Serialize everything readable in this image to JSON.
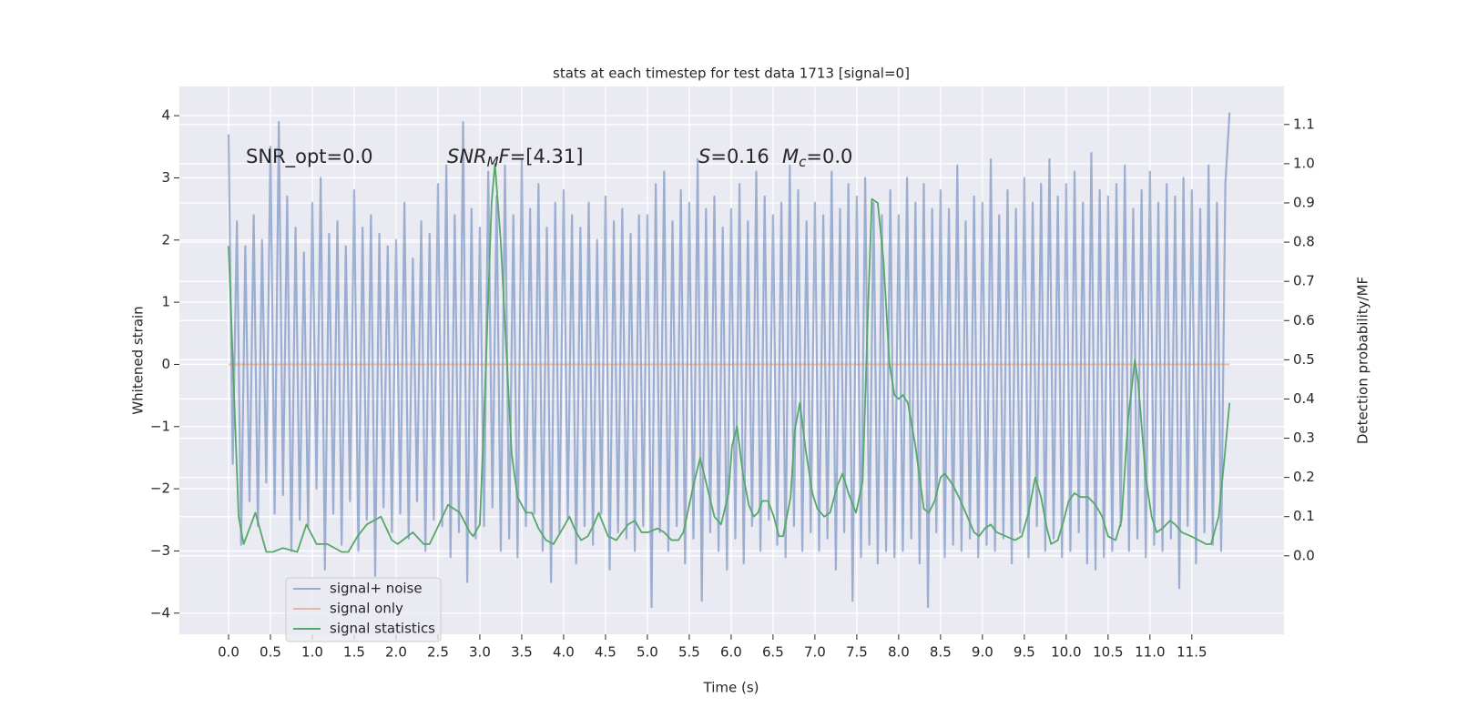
{
  "chart_data": {
    "type": "line",
    "title": "stats at each timestep for test data 1713 [signal=0]",
    "xlabel": "Time (s)",
    "ylabel": "Whitened strain",
    "y2label": "Detection probability/MF",
    "xlim": [
      -0.587,
      12.6
    ],
    "ylim": [
      -4.34,
      4.47
    ],
    "y2lim": [
      -0.2,
      1.197
    ],
    "xticks": [
      {
        "value": 0,
        "label": "0.0"
      },
      0.5,
      {
        "value": 1,
        "label": "1.0"
      },
      1.5,
      {
        "value": 2,
        "label": "2.0"
      },
      2.5,
      {
        "value": 3,
        "label": "3.0"
      },
      3.5,
      {
        "value": 4,
        "label": "4.0"
      },
      4.5,
      {
        "value": 5,
        "label": "5.0"
      },
      5.5,
      {
        "value": 6,
        "label": "6.0"
      },
      6.5,
      {
        "value": 7,
        "label": "7.0"
      },
      7.5,
      {
        "value": 8,
        "label": "8.0"
      },
      8.5,
      {
        "value": 9,
        "label": "9.0"
      },
      9.5,
      {
        "value": 10,
        "label": "10.0"
      },
      10.5,
      {
        "value": 11,
        "label": "11.0"
      },
      11.5
    ],
    "yticks": [
      {
        "value": -4,
        "label": "−4"
      },
      {
        "value": -3,
        "label": "−3"
      },
      {
        "value": -2,
        "label": "−2"
      },
      {
        "value": -1,
        "label": "−1"
      },
      0,
      1,
      2,
      3,
      4
    ],
    "y2ticks": [
      {
        "value": 0,
        "label": "0.0"
      },
      0.1,
      0.2,
      0.3,
      0.4,
      0.5,
      0.6,
      0.7,
      0.8,
      0.9,
      {
        "value": 1,
        "label": "1.0"
      },
      1.1
    ],
    "grid": true,
    "legend": "lower left",
    "annotations": [
      [
        {
          "text": "SNR_opt=0.0"
        }
      ],
      [
        {
          "text": "SNR",
          "italic": true
        },
        {
          "text": "M",
          "italic": true,
          "sub": true
        },
        {
          "text": "F",
          "italic": true
        },
        {
          "text": "=[4.31]"
        }
      ],
      [
        {
          "text": "S",
          "italic": true
        },
        {
          "text": "=0.16"
        }
      ],
      [
        {
          "text": "M",
          "italic": true
        },
        {
          "text": "c",
          "italic": true,
          "sub": true
        },
        {
          "text": "=0.0"
        }
      ]
    ],
    "series": [
      {
        "name": "signal+ noise",
        "color": "#4c72b0",
        "opacity": 0.5,
        "x": [
          0,
          0.05,
          0.1,
          0.15,
          0.2,
          0.25,
          0.3,
          0.35,
          0.4,
          0.45,
          0.5,
          0.55,
          0.6,
          0.65,
          0.7,
          0.75,
          0.8,
          0.85,
          0.9,
          0.95,
          1,
          1.05,
          1.1,
          1.15,
          1.2,
          1.25,
          1.3,
          1.35,
          1.4,
          1.45,
          1.5,
          1.55,
          1.6,
          1.65,
          1.7,
          1.75,
          1.8,
          1.85,
          1.9,
          1.95,
          2,
          2.05,
          2.1,
          2.15,
          2.2,
          2.25,
          2.3,
          2.35,
          2.4,
          2.45,
          2.5,
          2.55,
          2.6,
          2.65,
          2.7,
          2.75,
          2.8,
          2.85,
          2.9,
          2.95,
          3,
          3.05,
          3.1,
          3.15,
          3.2,
          3.25,
          3.3,
          3.35,
          3.4,
          3.45,
          3.5,
          3.55,
          3.6,
          3.65,
          3.7,
          3.75,
          3.8,
          3.85,
          3.9,
          3.95,
          4,
          4.05,
          4.1,
          4.15,
          4.2,
          4.25,
          4.3,
          4.35,
          4.4,
          4.45,
          4.5,
          4.55,
          4.6,
          4.65,
          4.7,
          4.75,
          4.8,
          4.85,
          4.9,
          4.95,
          5,
          5.05,
          5.1,
          5.15,
          5.2,
          5.25,
          5.3,
          5.35,
          5.4,
          5.45,
          5.5,
          5.55,
          5.6,
          5.65,
          5.7,
          5.75,
          5.8,
          5.85,
          5.9,
          5.95,
          6,
          6.05,
          6.1,
          6.15,
          6.2,
          6.25,
          6.3,
          6.35,
          6.4,
          6.45,
          6.5,
          6.55,
          6.6,
          6.65,
          6.7,
          6.75,
          6.8,
          6.85,
          6.9,
          6.95,
          7,
          7.05,
          7.1,
          7.15,
          7.2,
          7.25,
          7.3,
          7.35,
          7.4,
          7.45,
          7.5,
          7.55,
          7.6,
          7.65,
          7.7,
          7.75,
          7.8,
          7.85,
          7.9,
          7.95,
          8,
          8.05,
          8.1,
          8.15,
          8.2,
          8.25,
          8.3,
          8.35,
          8.4,
          8.45,
          8.5,
          8.55,
          8.6,
          8.65,
          8.7,
          8.75,
          8.8,
          8.85,
          8.9,
          8.95,
          9,
          9.05,
          9.1,
          9.15,
          9.2,
          9.25,
          9.3,
          9.35,
          9.4,
          9.45,
          9.5,
          9.55,
          9.6,
          9.65,
          9.7,
          9.75,
          9.8,
          9.85,
          9.9,
          9.95,
          10,
          10.05,
          10.1,
          10.15,
          10.2,
          10.25,
          10.3,
          10.35,
          10.4,
          10.45,
          10.5,
          10.55,
          10.6,
          10.65,
          10.7,
          10.75,
          10.8,
          10.85,
          10.9,
          10.95,
          11,
          11.05,
          11.1,
          11.15,
          11.2,
          11.25,
          11.3,
          11.35,
          11.4,
          11.45,
          11.5,
          11.55,
          11.6,
          11.65,
          11.7,
          11.75,
          11.8,
          11.85,
          11.9,
          11.95
        ],
        "values": [
          3.7,
          -1.6,
          2.3,
          -2.9,
          1.9,
          -2.2,
          2.4,
          -2.6,
          2.0,
          -1.9,
          3.5,
          -2.4,
          3.9,
          -2.1,
          2.7,
          -3.0,
          2.2,
          -2.5,
          1.8,
          -2.6,
          2.6,
          -2.0,
          3.0,
          -3.3,
          2.1,
          -2.4,
          2.3,
          -2.9,
          1.9,
          -2.2,
          2.8,
          -3.0,
          2.2,
          -2.5,
          2.4,
          -3.4,
          2.1,
          -2.3,
          1.9,
          -2.7,
          2.0,
          -2.4,
          2.6,
          -2.8,
          1.7,
          -2.2,
          2.3,
          -3.0,
          2.1,
          -2.5,
          2.9,
          -2.6,
          3.2,
          -3.1,
          2.4,
          -2.7,
          3.9,
          -3.5,
          2.5,
          -2.8,
          2.2,
          -2.6,
          3.1,
          -2.3,
          2.7,
          -3.0,
          3.2,
          -2.8,
          2.4,
          -3.1,
          3.3,
          -2.6,
          2.5,
          -2.4,
          2.9,
          -3.0,
          2.2,
          -3.5,
          2.6,
          -2.7,
          2.8,
          -2.5,
          2.4,
          -3.2,
          2.2,
          -2.6,
          2.6,
          -2.9,
          2.0,
          -2.4,
          2.7,
          -3.3,
          2.3,
          -2.7,
          2.5,
          -2.8,
          2.1,
          -3.0,
          2.4,
          -2.6,
          2.4,
          -3.9,
          2.9,
          -2.7,
          3.1,
          -3.0,
          2.3,
          -2.6,
          2.8,
          -3.2,
          2.6,
          -2.8,
          3.3,
          -3.8,
          2.5,
          -2.7,
          2.7,
          -3.0,
          2.2,
          -3.3,
          2.5,
          -2.8,
          2.9,
          -3.2,
          2.3,
          -2.6,
          3.1,
          -3.0,
          2.7,
          -2.5,
          2.4,
          -2.9,
          2.6,
          -3.1,
          3.2,
          -2.6,
          2.8,
          -3.0,
          2.3,
          -2.7,
          2.6,
          -3.0,
          2.4,
          -2.8,
          3.1,
          -3.3,
          2.5,
          -2.7,
          2.9,
          -3.8,
          2.7,
          -3.1,
          3.0,
          -2.9,
          2.6,
          -3.2,
          2.4,
          -3.0,
          2.8,
          -3.1,
          2.4,
          -3.0,
          3.0,
          -2.8,
          2.6,
          -3.2,
          2.9,
          -3.9,
          2.5,
          -2.7,
          2.8,
          -3.1,
          2.5,
          -2.9,
          3.2,
          -3.0,
          2.3,
          -2.8,
          2.7,
          -3.1,
          2.6,
          -2.9,
          3.3,
          -3.0,
          2.4,
          -2.8,
          2.8,
          -3.2,
          2.5,
          -2.7,
          3.0,
          -3.1,
          2.6,
          -2.6,
          2.9,
          -3.0,
          3.3,
          -2.8,
          2.7,
          -3.1,
          2.9,
          -3.0,
          3.1,
          -2.7,
          2.6,
          -3.2,
          3.4,
          -3.3,
          2.8,
          -3.1,
          2.7,
          -3.0,
          2.9,
          -2.6,
          3.2,
          -3.0,
          2.5,
          -2.8,
          2.8,
          -3.1,
          3.1,
          -2.9,
          2.6,
          -3.0,
          2.9,
          -2.8,
          2.7,
          -3.6,
          3.0,
          -2.6,
          2.8,
          -3.2,
          2.5,
          -2.7,
          3.2,
          -2.9,
          2.6,
          -3.0,
          2.9,
          4.05
        ]
      },
      {
        "name": "signal only",
        "color": "#dd8452",
        "opacity": 0.5,
        "x": [
          0,
          11.95
        ],
        "values": [
          0,
          0
        ]
      },
      {
        "name": "signal statistics",
        "color": "#55a868",
        "opacity": 1,
        "axis": "y2",
        "x": [
          0,
          0.12,
          0.18,
          0.32,
          0.45,
          0.53,
          0.65,
          0.82,
          0.93,
          1.05,
          1.18,
          1.35,
          1.43,
          1.54,
          1.65,
          1.82,
          1.95,
          2.02,
          2.14,
          2.2,
          2.33,
          2.4,
          2.49,
          2.62,
          2.76,
          2.88,
          2.92,
          3.0,
          3.05,
          3.14,
          3.18,
          3.25,
          3.38,
          3.45,
          3.55,
          3.62,
          3.7,
          3.79,
          3.88,
          3.99,
          4.07,
          4.15,
          4.21,
          4.29,
          4.36,
          4.42,
          4.53,
          4.63,
          4.77,
          4.85,
          4.93,
          5.01,
          5.12,
          5.2,
          5.29,
          5.37,
          5.43,
          5.55,
          5.63,
          5.72,
          5.8,
          5.88,
          5.97,
          6.01,
          6.07,
          6.14,
          6.21,
          6.27,
          6.32,
          6.37,
          6.44,
          6.51,
          6.57,
          6.62,
          6.71,
          6.76,
          6.82,
          6.89,
          6.97,
          7.03,
          7.11,
          7.18,
          7.27,
          7.33,
          7.4,
          7.49,
          7.57,
          7.63,
          7.68,
          7.75,
          7.82,
          7.89,
          7.95,
          8.0,
          8.05,
          8.11,
          8.2,
          8.3,
          8.36,
          8.43,
          8.5,
          8.55,
          8.65,
          8.74,
          8.82,
          8.9,
          8.96,
          9.03,
          9.1,
          9.17,
          9.28,
          9.39,
          9.47,
          9.55,
          9.63,
          9.7,
          9.77,
          9.82,
          9.9,
          9.97,
          10.03,
          10.1,
          10.17,
          10.26,
          10.35,
          10.43,
          10.5,
          10.59,
          10.66,
          10.74,
          10.82,
          10.86,
          10.95,
          11.02,
          11.08,
          11.15,
          11.24,
          11.3,
          11.38,
          11.49,
          11.58,
          11.67,
          11.73,
          11.82,
          11.89,
          11.95
        ],
        "values": [
          0.79,
          0.1,
          0.03,
          0.11,
          0.01,
          0.01,
          0.02,
          0.01,
          0.08,
          0.03,
          0.03,
          0.01,
          0.01,
          0.05,
          0.08,
          0.1,
          0.04,
          0.03,
          0.05,
          0.06,
          0.03,
          0.03,
          0.07,
          0.13,
          0.11,
          0.06,
          0.05,
          0.08,
          0.35,
          0.9,
          1,
          0.8,
          0.26,
          0.15,
          0.11,
          0.11,
          0.07,
          0.04,
          0.03,
          0.07,
          0.1,
          0.06,
          0.04,
          0.05,
          0.08,
          0.11,
          0.05,
          0.04,
          0.08,
          0.09,
          0.06,
          0.06,
          0.07,
          0.06,
          0.04,
          0.04,
          0.06,
          0.18,
          0.25,
          0.17,
          0.1,
          0.08,
          0.16,
          0.28,
          0.33,
          0.21,
          0.13,
          0.1,
          0.11,
          0.14,
          0.14,
          0.1,
          0.05,
          0.05,
          0.15,
          0.32,
          0.39,
          0.27,
          0.16,
          0.12,
          0.1,
          0.11,
          0.18,
          0.21,
          0.16,
          0.11,
          0.19,
          0.6,
          0.91,
          0.9,
          0.75,
          0.49,
          0.41,
          0.4,
          0.41,
          0.39,
          0.28,
          0.12,
          0.11,
          0.14,
          0.2,
          0.21,
          0.18,
          0.14,
          0.1,
          0.06,
          0.05,
          0.07,
          0.08,
          0.06,
          0.05,
          0.04,
          0.05,
          0.11,
          0.2,
          0.15,
          0.07,
          0.03,
          0.04,
          0.09,
          0.14,
          0.16,
          0.15,
          0.15,
          0.13,
          0.1,
          0.05,
          0.04,
          0.09,
          0.35,
          0.5,
          0.44,
          0.2,
          0.1,
          0.06,
          0.07,
          0.09,
          0.08,
          0.06,
          0.05,
          0.04,
          0.03,
          0.03,
          0.1,
          0.25,
          0.39
        ]
      }
    ]
  }
}
